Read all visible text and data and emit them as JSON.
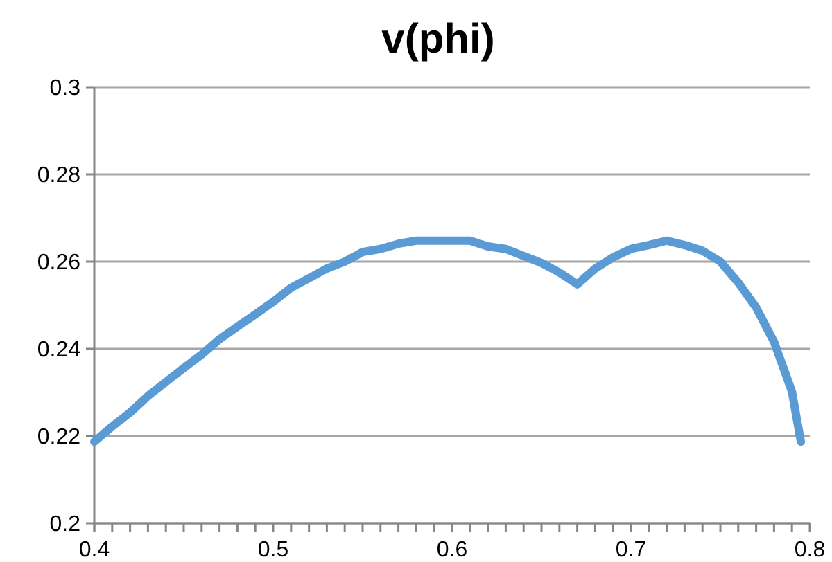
{
  "chart_data": {
    "type": "line",
    "title": "v(phi)",
    "x": [
      0.4,
      0.41,
      0.42,
      0.43,
      0.44,
      0.45,
      0.46,
      0.47,
      0.48,
      0.49,
      0.5,
      0.51,
      0.52,
      0.53,
      0.54,
      0.55,
      0.56,
      0.57,
      0.58,
      0.59,
      0.6,
      0.61,
      0.62,
      0.63,
      0.64,
      0.65,
      0.66,
      0.67,
      0.68,
      0.69,
      0.7,
      0.71,
      0.72,
      0.73,
      0.74,
      0.75,
      0.76,
      0.77,
      0.78,
      0.79,
      0.795
    ],
    "series": [
      {
        "color": "#5b9bd5",
        "values": [
          0.2187,
          0.2222,
          0.2254,
          0.2292,
          0.2324,
          0.2356,
          0.2387,
          0.2422,
          0.2451,
          0.2479,
          0.2508,
          0.254,
          0.2562,
          0.2584,
          0.26,
          0.2622,
          0.2629,
          0.2641,
          0.2648,
          0.2648,
          0.2648,
          0.2648,
          0.2635,
          0.2629,
          0.2613,
          0.2597,
          0.2575,
          0.2548,
          0.2584,
          0.261,
          0.2629,
          0.2638,
          0.2648,
          0.2638,
          0.2625,
          0.26,
          0.2552,
          0.2495,
          0.2416,
          0.2302,
          0.2187
        ]
      }
    ],
    "xlim": [
      0.4,
      0.8
    ],
    "xticks": [
      0.4,
      {
        "value": 0.41,
        "label": null
      },
      {
        "value": 0.42,
        "label": null
      },
      {
        "value": 0.43,
        "label": null
      },
      {
        "value": 0.44,
        "label": null
      },
      {
        "value": 0.45,
        "label": null
      },
      {
        "value": 0.46,
        "label": null
      },
      {
        "value": 0.47,
        "label": null
      },
      {
        "value": 0.48,
        "label": null
      },
      {
        "value": 0.49,
        "label": null
      },
      0.5,
      {
        "value": 0.51,
        "label": null
      },
      {
        "value": 0.52,
        "label": null
      },
      {
        "value": 0.53,
        "label": null
      },
      {
        "value": 0.54,
        "label": null
      },
      {
        "value": 0.55,
        "label": null
      },
      {
        "value": 0.56,
        "label": null
      },
      {
        "value": 0.57,
        "label": null
      },
      {
        "value": 0.58,
        "label": null
      },
      {
        "value": 0.59,
        "label": null
      },
      0.6,
      {
        "value": 0.61,
        "label": null
      },
      {
        "value": 0.62,
        "label": null
      },
      {
        "value": 0.63,
        "label": null
      },
      {
        "value": 0.64,
        "label": null
      },
      {
        "value": 0.65,
        "label": null
      },
      {
        "value": 0.66,
        "label": null
      },
      {
        "value": 0.67,
        "label": null
      },
      {
        "value": 0.68,
        "label": null
      },
      {
        "value": 0.69,
        "label": null
      },
      0.7,
      {
        "value": 0.71,
        "label": null
      },
      {
        "value": 0.72,
        "label": null
      },
      {
        "value": 0.73,
        "label": null
      },
      {
        "value": 0.74,
        "label": null
      },
      {
        "value": 0.75,
        "label": null
      },
      {
        "value": 0.76,
        "label": null
      },
      {
        "value": 0.77,
        "label": null
      },
      {
        "value": 0.78,
        "label": null
      },
      {
        "value": 0.79,
        "label": null
      },
      0.8
    ],
    "ylim": [
      0.2,
      0.3
    ],
    "yticks": [
      0.2,
      0.22,
      0.24,
      0.26,
      0.28,
      0.3
    ],
    "grid": "y",
    "marker": "none",
    "line_style": "solid"
  }
}
